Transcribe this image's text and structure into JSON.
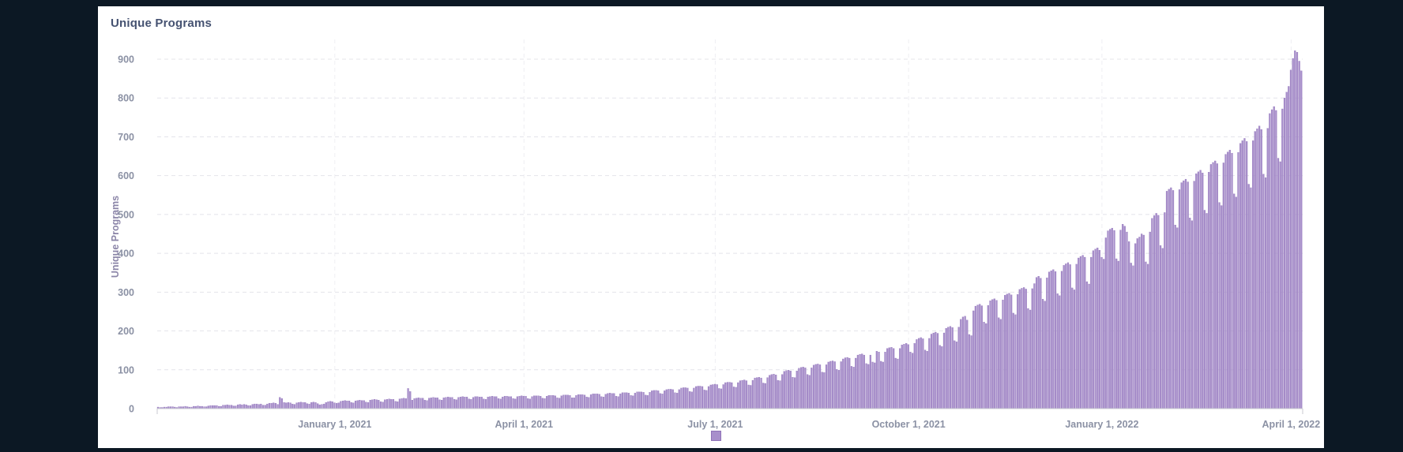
{
  "header": {
    "title": "Unique Programs"
  },
  "colors": {
    "page_background": "#0c1824",
    "card_background": "#ffffff",
    "title": "#455271",
    "tick_label": "#8b91a4",
    "axis_title": "#8b85a8",
    "grid": "#e4e4ea",
    "axis_line": "#c9cad2",
    "bar": "#a88fcb",
    "bar_edge": "#8f72b8"
  },
  "legend": {
    "swatch_color": "#a88fcb",
    "note": "legend cut off at bottom edge of viewport"
  },
  "chart_data": {
    "type": "bar",
    "title": "Unique Programs",
    "xlabel": "",
    "ylabel": "Unique Programs",
    "ylim": [
      0,
      950
    ],
    "grid": "dashed horizontal and vertical at ticks",
    "legend_position": "bottom-center (clipped)",
    "frequency": "daily",
    "start_date": "2020-10-09",
    "y_ticks": [
      0,
      100,
      200,
      300,
      400,
      500,
      600,
      700,
      800,
      900
    ],
    "x_ticks": [
      {
        "label": "January 1, 2021",
        "index": 84
      },
      {
        "label": "April 1, 2021",
        "index": 174
      },
      {
        "label": "July 1, 2021",
        "index": 265
      },
      {
        "label": "October 1, 2021",
        "index": 357
      },
      {
        "label": "January 1, 2022",
        "index": 449
      },
      {
        "label": "April 1, 2022",
        "index": 539
      }
    ],
    "values": [
      4,
      3,
      3,
      4,
      4,
      5,
      5,
      5,
      4,
      3,
      5,
      5,
      5,
      6,
      5,
      4,
      4,
      6,
      6,
      7,
      6,
      6,
      5,
      5,
      7,
      8,
      8,
      8,
      8,
      6,
      6,
      9,
      9,
      10,
      9,
      9,
      7,
      7,
      10,
      11,
      10,
      11,
      10,
      8,
      8,
      11,
      12,
      12,
      11,
      12,
      9,
      9,
      12,
      14,
      14,
      15,
      14,
      11,
      29,
      26,
      16,
      15,
      16,
      15,
      12,
      11,
      15,
      16,
      17,
      16,
      16,
      13,
      12,
      16,
      17,
      16,
      13,
      10,
      11,
      12,
      16,
      18,
      19,
      18,
      15,
      14,
      15,
      19,
      20,
      21,
      20,
      20,
      16,
      15,
      20,
      21,
      22,
      21,
      21,
      17,
      16,
      22,
      23,
      24,
      23,
      22,
      18,
      17,
      23,
      24,
      25,
      24,
      24,
      19,
      18,
      25,
      26,
      27,
      26,
      52,
      44,
      22,
      26,
      27,
      28,
      27,
      27,
      22,
      21,
      27,
      28,
      29,
      28,
      28,
      23,
      22,
      28,
      29,
      30,
      29,
      29,
      24,
      23,
      29,
      30,
      31,
      30,
      30,
      25,
      24,
      29,
      31,
      31,
      30,
      30,
      25,
      24,
      30,
      31,
      32,
      31,
      31,
      26,
      25,
      30,
      32,
      32,
      31,
      31,
      26,
      25,
      31,
      32,
      33,
      32,
      32,
      26,
      25,
      31,
      33,
      33,
      33,
      32,
      27,
      26,
      32,
      34,
      34,
      34,
      33,
      28,
      27,
      33,
      35,
      35,
      35,
      34,
      28,
      28,
      34,
      36,
      36,
      36,
      35,
      30,
      29,
      36,
      38,
      38,
      38,
      37,
      31,
      30,
      37,
      39,
      40,
      39,
      39,
      32,
      31,
      38,
      41,
      41,
      41,
      40,
      34,
      33,
      40,
      43,
      43,
      43,
      42,
      35,
      34,
      42,
      46,
      47,
      47,
      46,
      39,
      38,
      46,
      49,
      50,
      50,
      49,
      41,
      40,
      49,
      53,
      54,
      54,
      53,
      44,
      43,
      53,
      57,
      58,
      58,
      57,
      48,
      47,
      57,
      61,
      62,
      63,
      62,
      52,
      51,
      62,
      67,
      68,
      68,
      67,
      56,
      55,
      67,
      72,
      73,
      74,
      72,
      61,
      60,
      73,
      79,
      80,
      81,
      79,
      66,
      65,
      80,
      86,
      88,
      89,
      87,
      73,
      72,
      88,
      96,
      98,
      99,
      97,
      81,
      80,
      97,
      104,
      106,
      107,
      105,
      88,
      86,
      105,
      112,
      114,
      115,
      113,
      94,
      93,
      113,
      120,
      122,
      123,
      121,
      101,
      99,
      121,
      128,
      131,
      132,
      130,
      109,
      107,
      130,
      138,
      140,
      141,
      138,
      116,
      114,
      138,
      120,
      118,
      148,
      146,
      122,
      120,
      146,
      155,
      157,
      158,
      155,
      130,
      128,
      155,
      164,
      166,
      168,
      165,
      146,
      143,
      168,
      178,
      181,
      183,
      180,
      151,
      148,
      181,
      192,
      195,
      197,
      194,
      163,
      160,
      195,
      207,
      210,
      212,
      209,
      175,
      172,
      210,
      230,
      236,
      238,
      228,
      191,
      188,
      252,
      264,
      267,
      269,
      265,
      223,
      219,
      266,
      278,
      281,
      283,
      279,
      234,
      230,
      280,
      292,
      295,
      297,
      293,
      246,
      242,
      294,
      307,
      310,
      312,
      308,
      258,
      254,
      309,
      322,
      338,
      341,
      336,
      282,
      277,
      337,
      352,
      355,
      358,
      353,
      296,
      291,
      354,
      369,
      373,
      376,
      371,
      311,
      306,
      372,
      388,
      392,
      395,
      390,
      327,
      321,
      390,
      407,
      411,
      414,
      408,
      390,
      385,
      440,
      458,
      462,
      465,
      459,
      386,
      380,
      460,
      475,
      470,
      455,
      430,
      375,
      368,
      425,
      438,
      442,
      450,
      447,
      378,
      372,
      455,
      490,
      497,
      503,
      498,
      420,
      413,
      505,
      560,
      565,
      569,
      562,
      473,
      466,
      564,
      582,
      587,
      591,
      584,
      491,
      484,
      586,
      605,
      610,
      614,
      607,
      511,
      503,
      609,
      629,
      634,
      638,
      631,
      531,
      523,
      633,
      655,
      661,
      666,
      658,
      553,
      545,
      660,
      683,
      690,
      696,
      688,
      578,
      569,
      690,
      714,
      721,
      728,
      719,
      604,
      595,
      722,
      760,
      770,
      778,
      768,
      645,
      636,
      772,
      800,
      815,
      830,
      872,
      902,
      922,
      918,
      895,
      870
    ]
  }
}
